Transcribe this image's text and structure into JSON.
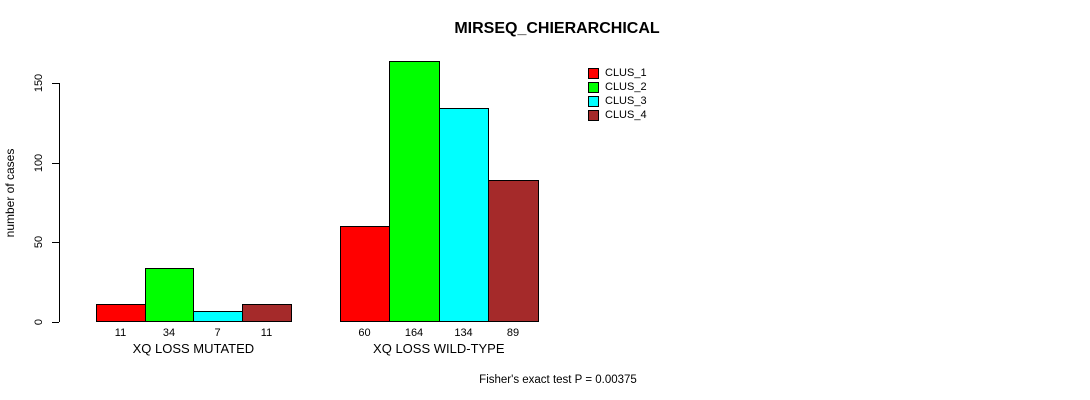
{
  "chart_data": {
    "type": "bar",
    "title": "MIRSEQ_CHIERARCHICAL",
    "ylabel": "number of cases",
    "xlabel": "",
    "footer": "Fisher's exact test P = 0.00375",
    "grid": false,
    "legend_position": "top-right",
    "ylim": [
      0,
      164
    ],
    "yticks": [
      0,
      50,
      100,
      150
    ],
    "series": [
      {
        "name": "CLUS_1",
        "color": "#ff0000"
      },
      {
        "name": "CLUS_2",
        "color": "#00ff00"
      },
      {
        "name": "CLUS_3",
        "color": "#00ffff"
      },
      {
        "name": "CLUS_4",
        "color": "#a52a2a"
      }
    ],
    "categories": [
      "XQ LOSS MUTATED",
      "XQ LOSS WILD-TYPE"
    ],
    "groups": [
      {
        "label": "XQ LOSS MUTATED",
        "values": [
          11,
          34,
          7,
          11
        ]
      },
      {
        "label": "XQ LOSS WILD-TYPE",
        "values": [
          60,
          164,
          134,
          89
        ]
      }
    ],
    "bar_value_labels": [
      11,
      34,
      7,
      11,
      60,
      164,
      134,
      89
    ],
    "colors": {
      "background": "#ffffff",
      "axis": "#000000",
      "text": "#000000",
      "bar_border": "#000000"
    }
  }
}
